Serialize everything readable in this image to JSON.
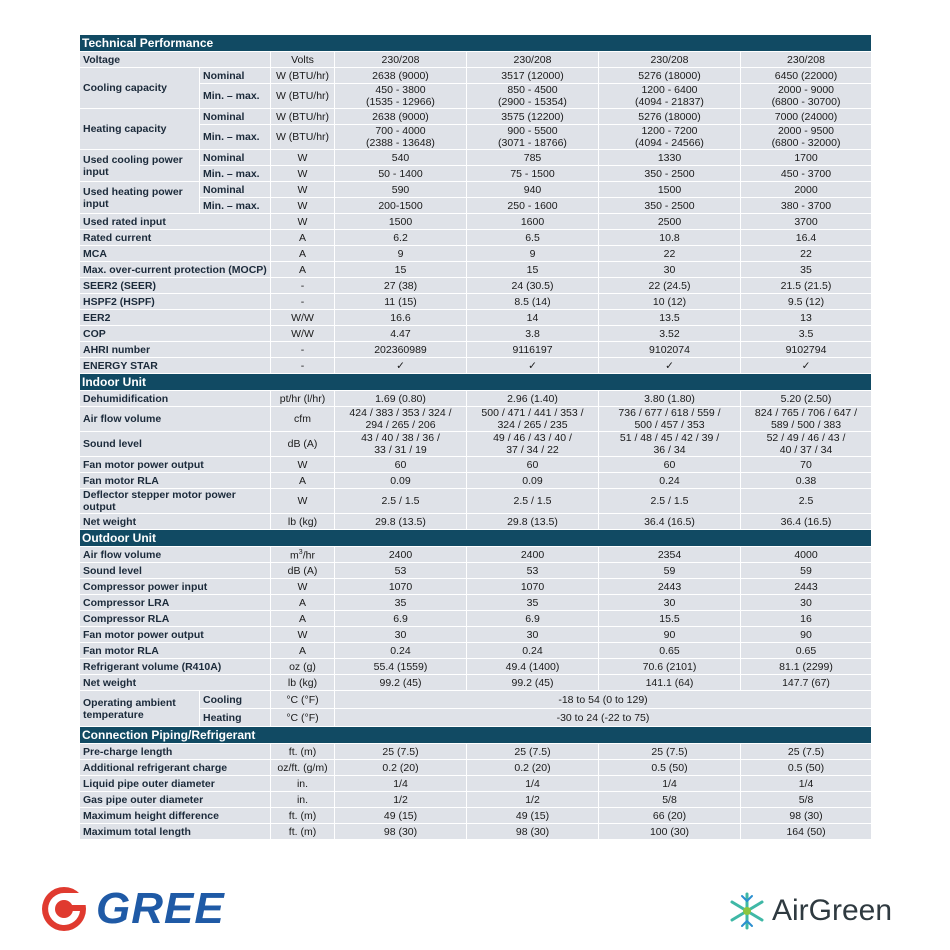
{
  "sections": {
    "technical": "Technical Performance",
    "indoor": "Indoor Unit",
    "outdoor": "Outdoor Unit",
    "piping": "Connection Piping/Refrigerant"
  },
  "sub": {
    "nominal": "Nominal",
    "minmax": "Min. – max.",
    "cooling": "Cooling",
    "heating": "Heating"
  },
  "rows": {
    "voltage": {
      "label": "Voltage",
      "unit": "Volts",
      "v": [
        "230/208",
        "230/208",
        "230/208",
        "230/208"
      ]
    },
    "cool_cap": {
      "label": "Cooling capacity",
      "nominal": {
        "unit": "W (BTU/hr)",
        "v": [
          "2638 (9000)",
          "3517 (12000)",
          "5276 (18000)",
          "6450 (22000)"
        ]
      },
      "minmax": {
        "unit": "W (BTU/hr)",
        "a": [
          "450 - 3800",
          "850 - 4500",
          "1200 - 6400",
          "2000 - 9000"
        ],
        "b": [
          "(1535 - 12966)",
          "(2900 - 15354)",
          "(4094 - 21837)",
          "(6800 - 30700)"
        ]
      }
    },
    "heat_cap": {
      "label": "Heating capacity",
      "nominal": {
        "unit": "W (BTU/hr)",
        "v": [
          "2638 (9000)",
          "3575 (12200)",
          "5276 (18000)",
          "7000 (24000)"
        ]
      },
      "minmax": {
        "unit": "W (BTU/hr)",
        "a": [
          "700 - 4000",
          "900 - 5500",
          "1200 - 7200",
          "2000 - 9500"
        ],
        "b": [
          "(2388 - 13648)",
          "(3071 - 18766)",
          "(4094 - 24566)",
          "(6800 - 32000)"
        ]
      }
    },
    "cool_pow": {
      "label": "Used cooling power input",
      "nominal": {
        "unit": "W",
        "v": [
          "540",
          "785",
          "1330",
          "1700"
        ]
      },
      "minmax": {
        "unit": "W",
        "v": [
          "50 - 1400",
          "75 - 1500",
          "350 - 2500",
          "450 - 3700"
        ]
      }
    },
    "heat_pow": {
      "label": "Used heating power input",
      "nominal": {
        "unit": "W",
        "v": [
          "590",
          "940",
          "1500",
          "2000"
        ]
      },
      "minmax": {
        "unit": "W",
        "v": [
          "200-1500",
          "250 - 1600",
          "350 - 2500",
          "380 - 3700"
        ]
      }
    },
    "rated_input": {
      "label": "Used rated input",
      "unit": "W",
      "v": [
        "1500",
        "1600",
        "2500",
        "3700"
      ]
    },
    "rated_current": {
      "label": "Rated current",
      "unit": "A",
      "v": [
        "6.2",
        "6.5",
        "10.8",
        "16.4"
      ]
    },
    "mca": {
      "label": "MCA",
      "unit": "A",
      "v": [
        "9",
        "9",
        "22",
        "22"
      ]
    },
    "mocp": {
      "label": "Max. over-current protection (MOCP)",
      "unit": "A",
      "v": [
        "15",
        "15",
        "30",
        "35"
      ]
    },
    "seer": {
      "label": "SEER2 (SEER)",
      "unit": "-",
      "v": [
        "27 (38)",
        "24 (30.5)",
        "22 (24.5)",
        "21.5 (21.5)"
      ]
    },
    "hspf": {
      "label": "HSPF2 (HSPF)",
      "unit": "-",
      "v": [
        "11 (15)",
        "8.5 (14)",
        "10 (12)",
        "9.5 (12)"
      ]
    },
    "eer": {
      "label": "EER2",
      "unit": "W/W",
      "v": [
        "16.6",
        "14",
        "13.5",
        "13"
      ]
    },
    "cop": {
      "label": "COP",
      "unit": "W/W",
      "v": [
        "4.47",
        "3.8",
        "3.52",
        "3.5"
      ]
    },
    "ahri": {
      "label": "AHRI number",
      "unit": "-",
      "v": [
        "202360989",
        "9116197",
        "9102074",
        "9102794"
      ]
    },
    "energy": {
      "label": "ENERGY STAR",
      "unit": "-",
      "v": [
        "✓",
        "✓",
        "✓",
        "✓"
      ]
    },
    "dehum": {
      "label": "Dehumidification",
      "unit": "pt/hr (l/hr)",
      "v": [
        "1.69 (0.80)",
        "2.96 (1.40)",
        "3.80 (1.80)",
        "5.20 (2.50)"
      ]
    },
    "in_air": {
      "label": "Air flow volume",
      "unit": "cfm",
      "a": [
        "424 / 383 / 353 / 324 /",
        "500 / 471 / 441 / 353 /",
        "736 / 677 / 618 / 559 /",
        "824 / 765 / 706 / 647 /"
      ],
      "b": [
        "294 / 265 / 206",
        "324 / 265 / 235",
        "500 / 457 / 353",
        "589 / 500 / 383"
      ]
    },
    "in_sound": {
      "label": "Sound level",
      "unit": "dB (A)",
      "a": [
        "43 / 40 / 38 / 36 /",
        "49 / 46 / 43 / 40 /",
        "51 / 48 / 45 / 42 / 39 /",
        "52 / 49 / 46 / 43 /"
      ],
      "b": [
        "33 / 31 / 19",
        "37 / 34 / 22",
        "36 / 34",
        "40 / 37 / 34"
      ]
    },
    "in_fan": {
      "label": "Fan motor power output",
      "unit": "W",
      "v": [
        "60",
        "60",
        "60",
        "70"
      ]
    },
    "in_rla": {
      "label": "Fan motor RLA",
      "unit": "A",
      "v": [
        "0.09",
        "0.09",
        "0.24",
        "0.38"
      ]
    },
    "deflector": {
      "label": "Deflector stepper motor power output",
      "unit": "W",
      "v": [
        "2.5 / 1.5",
        "2.5 / 1.5",
        "2.5 / 1.5",
        "2.5"
      ]
    },
    "in_weight": {
      "label": "Net weight",
      "unit": "lb (kg)",
      "v": [
        "29.8 (13.5)",
        "29.8 (13.5)",
        "36.4 (16.5)",
        "36.4 (16.5)"
      ]
    },
    "out_air": {
      "label": "Air flow volume",
      "unit_base": "m",
      "unit_sup": "3",
      "unit_tail": "/hr",
      "v": [
        "2400",
        "2400",
        "2354",
        "4000"
      ]
    },
    "out_sound": {
      "label": "Sound level",
      "unit": "dB (A)",
      "v": [
        "53",
        "53",
        "59",
        "59"
      ]
    },
    "comp_pow": {
      "label": "Compressor power input",
      "unit": "W",
      "v": [
        "1070",
        "1070",
        "2443",
        "2443"
      ]
    },
    "comp_lra": {
      "label": "Compressor LRA",
      "unit": "A",
      "v": [
        "35",
        "35",
        "30",
        "30"
      ]
    },
    "comp_rla": {
      "label": "Compressor RLA",
      "unit": "A",
      "v": [
        "6.9",
        "6.9",
        "15.5",
        "16"
      ]
    },
    "out_fan": {
      "label": "Fan motor power output",
      "unit": "W",
      "v": [
        "30",
        "30",
        "90",
        "90"
      ]
    },
    "out_rla": {
      "label": "Fan motor RLA",
      "unit": "A",
      "v": [
        "0.24",
        "0.24",
        "0.65",
        "0.65"
      ]
    },
    "refrig": {
      "label": "Refrigerant volume (R410A)",
      "unit": "oz (g)",
      "v": [
        "55.4 (1559)",
        "49.4 (1400)",
        "70.6 (2101)",
        "81.1 (2299)"
      ]
    },
    "out_weight": {
      "label": "Net weight",
      "unit": "lb (kg)",
      "v": [
        "99.2 (45)",
        "99.2 (45)",
        "141.1 (64)",
        "147.7 (67)"
      ]
    },
    "op_temp": {
      "label": "Operating ambient temperature",
      "cooling": {
        "unit": "°C (°F)",
        "v": "-18 to 54 (0 to 129)"
      },
      "heating": {
        "unit": "°C (°F)",
        "v": "-30 to 24 (-22 to 75)"
      }
    },
    "precharge": {
      "label": "Pre-charge length",
      "unit": "ft. (m)",
      "v": [
        "25 (7.5)",
        "25 (7.5)",
        "25 (7.5)",
        "25 (7.5)"
      ]
    },
    "add_refrig": {
      "label": "Additional refrigerant charge",
      "unit": "oz/ft. (g/m)",
      "v": [
        "0.2 (20)",
        "0.2 (20)",
        "0.5 (50)",
        "0.5 (50)"
      ]
    },
    "liquid_pipe": {
      "label": "Liquid pipe outer diameter",
      "unit": "in.",
      "v": [
        "1/4",
        "1/4",
        "1/4",
        "1/4"
      ]
    },
    "gas_pipe": {
      "label": "Gas pipe outer diameter",
      "unit": "in.",
      "v": [
        "1/2",
        "1/2",
        "5/8",
        "5/8"
      ]
    },
    "max_height": {
      "label": "Maximum height difference",
      "unit": "ft. (m)",
      "v": [
        "49 (15)",
        "49 (15)",
        "66 (20)",
        "98 (30)"
      ]
    },
    "max_length": {
      "label": "Maximum total length",
      "unit": "ft. (m)",
      "v": [
        "98 (30)",
        "98 (30)",
        "100 (30)",
        "164 (50)"
      ]
    }
  },
  "logos": {
    "gree": {
      "text": "GREE",
      "color": "#1f5aa6",
      "accent": "#e03a2f"
    },
    "airgreen": {
      "text": "AirGreen",
      "color": "#2f3a40",
      "accent": "#3fb8a6"
    }
  }
}
